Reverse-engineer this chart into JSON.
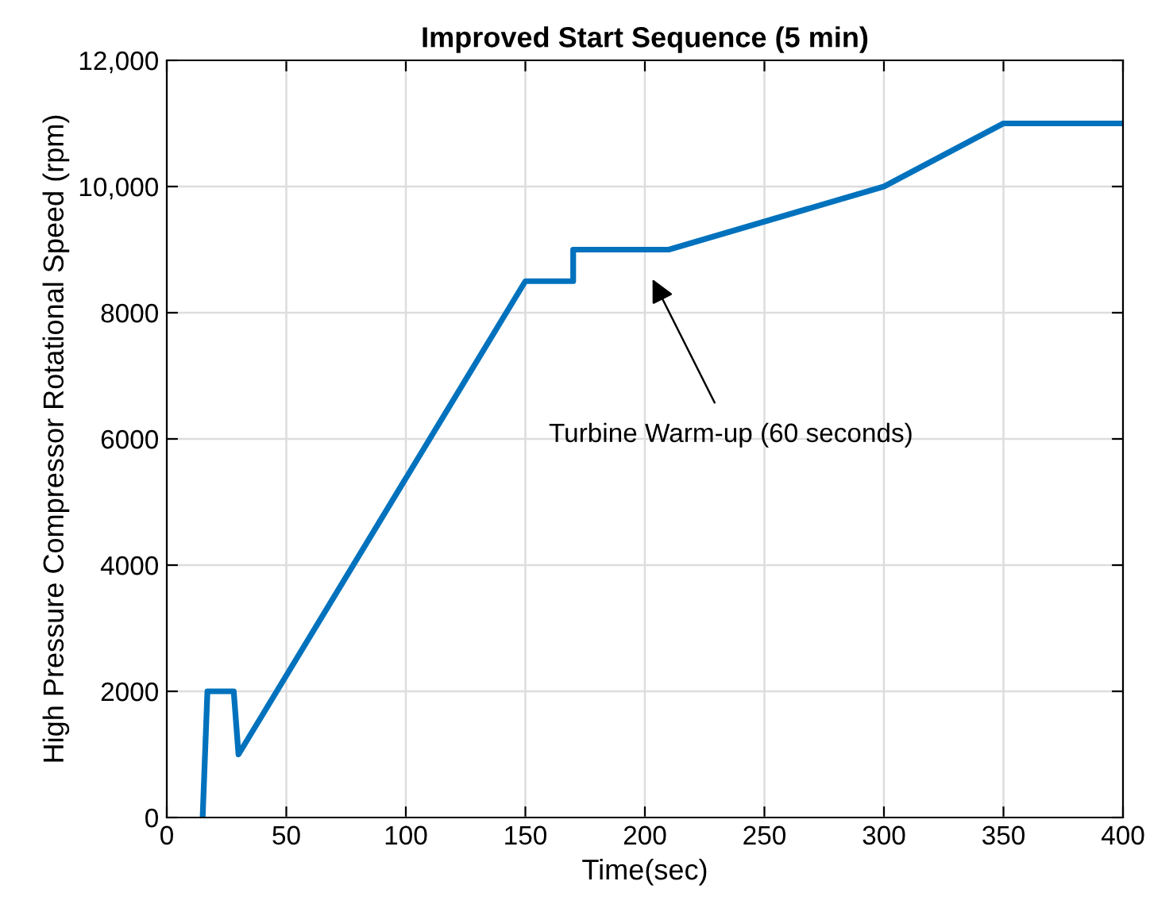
{
  "chart_data": {
    "type": "line",
    "title": "Improved Start Sequence (5 min)",
    "xlabel": "Time(sec)",
    "ylabel": "High Pressure Compressor Rotational Speed (rpm)",
    "series": [
      {
        "color": "#0072bd",
        "x": [
          15,
          17,
          28,
          30,
          150,
          170,
          170,
          210,
          300,
          350,
          400
        ],
        "values": [
          0,
          2000,
          2000,
          1000,
          8500,
          8500,
          9000,
          9000,
          10000,
          11000,
          11000
        ]
      }
    ],
    "annotations": [
      "Turbine Warm-up (60 seconds)"
    ],
    "xlim": [
      0,
      400
    ],
    "xticks": [
      0,
      50,
      100,
      150,
      200,
      250,
      300,
      350,
      400
    ],
    "ylim": [
      0,
      12000
    ],
    "yticks": [
      0,
      2000,
      4000,
      6000,
      8000,
      {
        "value": 10000,
        "label": "10,000"
      },
      {
        "value": 12000,
        "label": "12,000"
      }
    ],
    "grid": true,
    "marker": "none",
    "line_style": "solid"
  }
}
